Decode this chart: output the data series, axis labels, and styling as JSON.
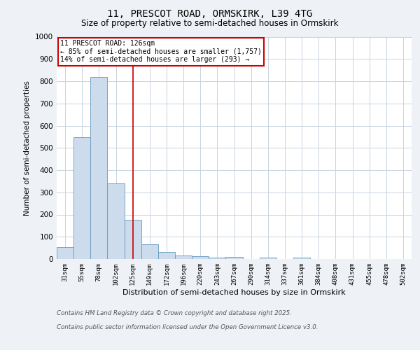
{
  "title_line1": "11, PRESCOT ROAD, ORMSKIRK, L39 4TG",
  "title_line2": "Size of property relative to semi-detached houses in Ormskirk",
  "xlabel": "Distribution of semi-detached houses by size in Ormskirk",
  "ylabel": "Number of semi-detached properties",
  "categories": [
    "31sqm",
    "55sqm",
    "78sqm",
    "102sqm",
    "125sqm",
    "149sqm",
    "172sqm",
    "196sqm",
    "220sqm",
    "243sqm",
    "267sqm",
    "290sqm",
    "314sqm",
    "337sqm",
    "361sqm",
    "384sqm",
    "408sqm",
    "431sqm",
    "455sqm",
    "478sqm",
    "502sqm"
  ],
  "values": [
    53,
    548,
    820,
    340,
    175,
    67,
    32,
    15,
    12,
    7,
    9,
    0,
    6,
    0,
    6,
    0,
    0,
    0,
    0,
    0,
    0
  ],
  "bar_color": "#ccdcec",
  "bar_edge_color": "#6699bb",
  "vline_x": 4,
  "vline_color": "#cc0000",
  "annotation_text": "11 PRESCOT ROAD: 126sqm\n← 85% of semi-detached houses are smaller (1,757)\n14% of semi-detached houses are larger (293) →",
  "annotation_box_color": "#ffffff",
  "annotation_box_edge": "#cc0000",
  "ylim": [
    0,
    1000
  ],
  "yticks": [
    0,
    100,
    200,
    300,
    400,
    500,
    600,
    700,
    800,
    900,
    1000
  ],
  "footnote1": "Contains HM Land Registry data © Crown copyright and database right 2025.",
  "footnote2": "Contains public sector information licensed under the Open Government Licence v3.0.",
  "bg_color": "#eef2f6",
  "plot_bg_color": "#ffffff",
  "grid_color": "#c8d4e0"
}
